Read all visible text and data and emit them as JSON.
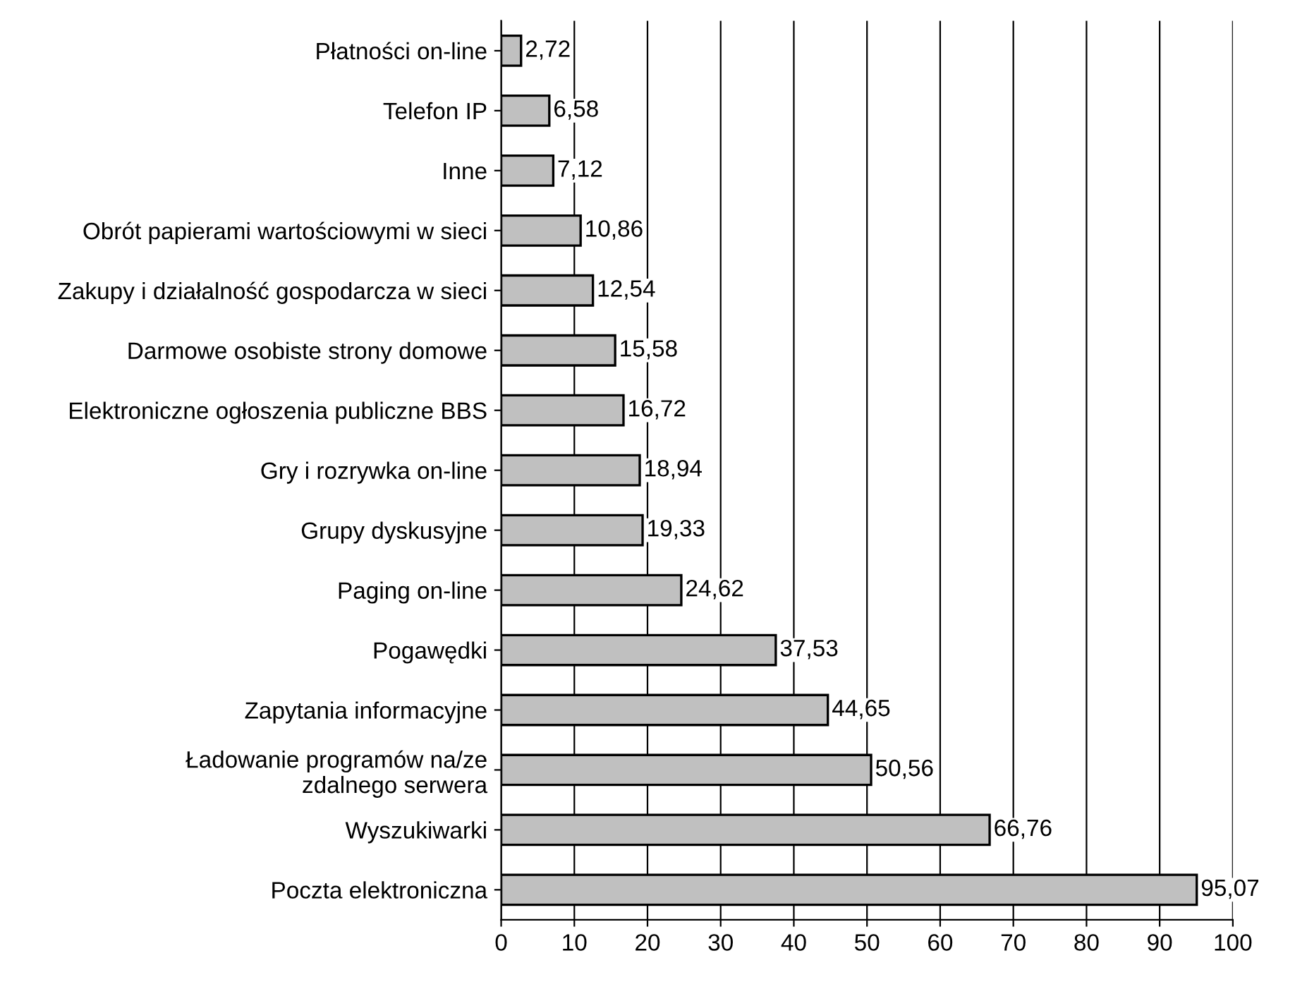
{
  "chart_data": {
    "type": "bar",
    "orientation": "horizontal",
    "categories": [
      "Płatności on-line",
      "Telefon IP",
      "Inne",
      "Obrót papierami wartościowymi w sieci",
      "Zakupy i działalność gospodarcza w sieci",
      "Darmowe osobiste strony domowe",
      "Elektroniczne ogłoszenia publiczne BBS",
      "Gry i rozrywka on-line",
      "Grupy dyskusyjne",
      "Paging on-line",
      "Pogawędki",
      "Zapytania informacyjne",
      "Ładowanie programów na/ze\nzdalnego serwera",
      "Wyszukiwarki",
      "Poczta elektroniczna"
    ],
    "values": [
      2.72,
      6.58,
      7.12,
      10.86,
      12.54,
      15.58,
      16.72,
      18.94,
      19.33,
      24.62,
      37.53,
      44.65,
      50.56,
      66.76,
      95.07
    ],
    "value_labels": [
      "2,72",
      "6,58",
      "7,12",
      "10,86",
      "12,54",
      "15,58",
      "16,72",
      "18,94",
      "19,33",
      "24,62",
      "37,53",
      "44,65",
      "50,56",
      "66,76",
      "95,07"
    ],
    "color": "#c0c0c0",
    "xlim": [
      0,
      100
    ],
    "xticks": [
      0,
      10,
      20,
      30,
      40,
      50,
      60,
      70,
      80,
      90,
      100
    ],
    "grid": "x",
    "legend": false
  }
}
